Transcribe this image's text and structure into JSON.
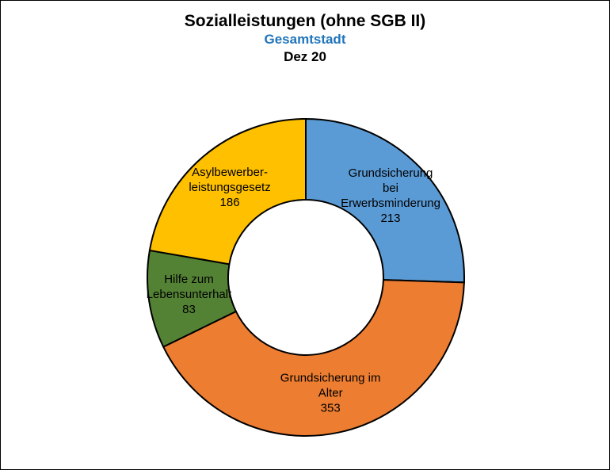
{
  "chart_data": {
    "type": "pie",
    "variant": "donut",
    "title": "Sozialleistungen (ohne SGB II)",
    "subtitle": "Gesamtstadt",
    "period": "Dez 20",
    "subtitle_color": "#1f74bb",
    "legend": "none",
    "slices": [
      {
        "label_lines": [
          "Grundsicherung",
          "bei",
          "Erwerbsminderung"
        ],
        "value": 213,
        "color": "#5b9bd5"
      },
      {
        "label_lines": [
          "Grundsicherung im",
          "Alter"
        ],
        "value": 353,
        "color": "#ed7d31"
      },
      {
        "label_lines": [
          "Hilfe zum",
          "Lebensunterhalt"
        ],
        "value": 83,
        "color": "#548235"
      },
      {
        "label_lines": [
          "Asylbewerber-",
          "leistungsgesetz"
        ],
        "value": 186,
        "color": "#ffc000"
      }
    ]
  }
}
